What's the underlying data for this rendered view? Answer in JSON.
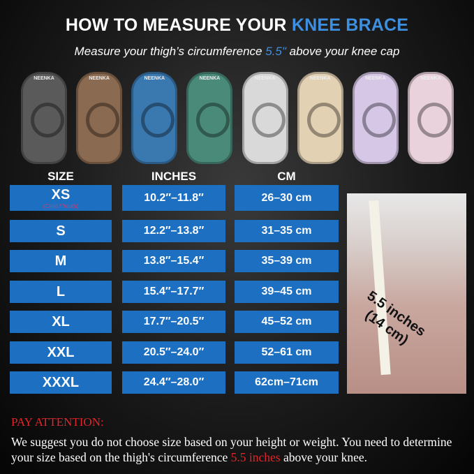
{
  "title": {
    "prefix": "HOW TO MEASURE YOUR ",
    "highlight": "KNEE BRACE"
  },
  "subtitle": {
    "before": "Measure your thigh’s circumference ",
    "highlight": "5.5\"",
    "after": " above your knee cap"
  },
  "products": {
    "brand": "NEENKA",
    "colors": [
      "#5a5a5a",
      "#8a6a50",
      "#3a78b0",
      "#4a8a78",
      "#d9d9d9",
      "#e3d1b4",
      "#d6c7e6",
      "#ead2dc"
    ]
  },
  "table": {
    "headers": [
      "SIZE",
      "INCHES",
      "CM"
    ],
    "rows": [
      {
        "size": "XS",
        "note": "(Child / Youth)",
        "inches": "10.2″–11.8″",
        "cm": "26–30 cm"
      },
      {
        "size": "S",
        "inches": "12.2″–13.8″",
        "cm": "31–35 cm"
      },
      {
        "size": "M",
        "inches": "13.8″–15.4″",
        "cm": "35–39 cm"
      },
      {
        "size": "L",
        "inches": "15.4″–17.7″",
        "cm": "39–45 cm"
      },
      {
        "size": "XL",
        "inches": "17.7″–20.5″",
        "cm": "45–52 cm"
      },
      {
        "size": "XXL",
        "inches": "20.5″–24.0″",
        "cm": "52–61 cm"
      },
      {
        "size": "XXXL",
        "inches": "24.4″–28.0″",
        "cm": "62cm–71cm"
      }
    ]
  },
  "photo": {
    "label_line1": "5.5 inches",
    "label_line2": "(14 cm)"
  },
  "attention": {
    "heading": "PAY ATTENTION:",
    "text_before": "We suggest you do not choose size based on your height or weight. You need to determine your size based on the thigh's circumference ",
    "highlight": "5.5 inches",
    "text_after": " above your knee."
  },
  "colors": {
    "accent_blue": "#1c6fc1",
    "highlight_red": "#e0262a"
  }
}
